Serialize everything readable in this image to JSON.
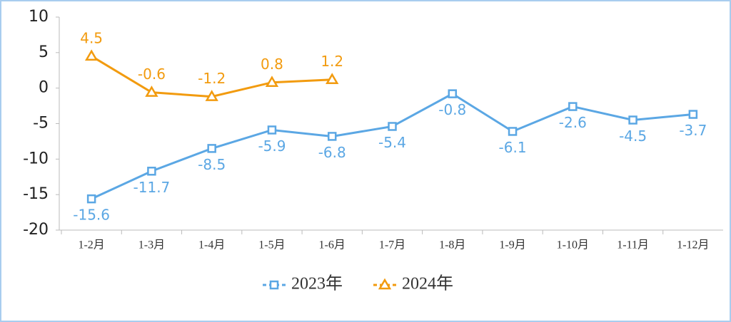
{
  "chart_data": {
    "type": "line",
    "categories": [
      "1-2月",
      "1-3月",
      "1-4月",
      "1-5月",
      "1-6月",
      "1-7月",
      "1-8月",
      "1-9月",
      "1-10月",
      "1-11月",
      "1-12月"
    ],
    "series": [
      {
        "name": "2023年",
        "color": "#5ba7e4",
        "marker": "square",
        "label_position": "below",
        "values": [
          -15.6,
          -11.7,
          -8.5,
          -5.9,
          -6.8,
          -5.4,
          -0.8,
          -6.1,
          -2.6,
          -4.5,
          -3.7
        ]
      },
      {
        "name": "2024年",
        "color": "#f29b0f",
        "marker": "triangle",
        "label_position": "above",
        "values": [
          4.5,
          -0.6,
          -1.2,
          0.8,
          1.2,
          null,
          null,
          null,
          null,
          null,
          null
        ]
      }
    ],
    "ylim": [
      -20,
      10
    ],
    "yticks": [
      -20,
      -15,
      -10,
      -5,
      0,
      5,
      10
    ],
    "grid": false,
    "legend": "bottom"
  }
}
